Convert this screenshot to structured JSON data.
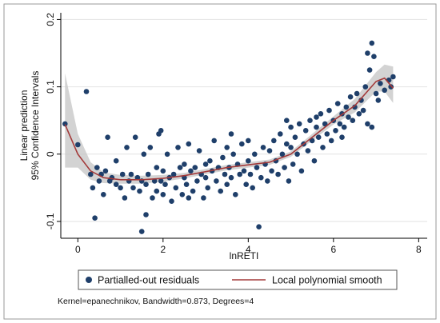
{
  "chart_data": {
    "type": "scatter",
    "xlabel": "lnRETI",
    "ylabel_lines": [
      "Linear prediction",
      "95% Confidence Intervals"
    ],
    "xlim": [
      -0.4,
      8.2
    ],
    "ylim": [
      -0.125,
      0.21
    ],
    "x_ticks": [
      0,
      2,
      4,
      6,
      8
    ],
    "y_ticks": [
      -0.1,
      0,
      0.1,
      0.2
    ],
    "x_tick_labels": [
      "0",
      "2",
      "4",
      "6",
      "8"
    ],
    "y_tick_labels": [
      "-0.1",
      "0",
      "0.1",
      "0.2"
    ],
    "grid": "horizontal",
    "legend_position": "bottom",
    "colors": {
      "points": "#1f3f6a",
      "smooth": "#a33a3a",
      "ci_band": "#c4c4c4"
    },
    "series": [
      {
        "name": "Partialled-out residuals",
        "kind": "points",
        "points": [
          [
            -0.3,
            0.045
          ],
          [
            0.2,
            0.093
          ],
          [
            0.0,
            0.014
          ],
          [
            0.3,
            -0.03
          ],
          [
            0.35,
            -0.05
          ],
          [
            0.4,
            -0.095
          ],
          [
            0.45,
            -0.02
          ],
          [
            0.5,
            -0.04
          ],
          [
            0.55,
            -0.03
          ],
          [
            0.6,
            -0.06
          ],
          [
            0.65,
            -0.025
          ],
          [
            0.7,
            0.025
          ],
          [
            0.75,
            -0.04
          ],
          [
            0.8,
            -0.035
          ],
          [
            0.9,
            -0.045
          ],
          [
            1.0,
            -0.05
          ],
          [
            1.05,
            -0.03
          ],
          [
            1.1,
            -0.065
          ],
          [
            1.15,
            0.01
          ],
          [
            1.2,
            -0.04
          ],
          [
            1.25,
            -0.03
          ],
          [
            1.3,
            -0.05
          ],
          [
            1.35,
            0.025
          ],
          [
            1.4,
            -0.035
          ],
          [
            1.45,
            -0.055
          ],
          [
            1.5,
            -0.115
          ],
          [
            1.5,
            -0.04
          ],
          [
            1.55,
            0.0
          ],
          [
            1.6,
            -0.045
          ],
          [
            1.6,
            -0.09
          ],
          [
            1.65,
            -0.03
          ],
          [
            1.7,
            0.01
          ],
          [
            1.75,
            -0.065
          ],
          [
            1.8,
            -0.04
          ],
          [
            1.85,
            -0.02
          ],
          [
            1.85,
            -0.055
          ],
          [
            1.9,
            0.03
          ],
          [
            1.95,
            -0.04
          ],
          [
            2.0,
            -0.06
          ],
          [
            2.0,
            -0.025
          ],
          [
            2.05,
            -0.045
          ],
          [
            2.1,
            0.0
          ],
          [
            2.15,
            -0.035
          ],
          [
            2.2,
            -0.07
          ],
          [
            2.25,
            -0.03
          ],
          [
            2.3,
            -0.05
          ],
          [
            2.35,
            0.01
          ],
          [
            2.4,
            -0.02
          ],
          [
            2.45,
            -0.06
          ],
          [
            2.5,
            -0.035
          ],
          [
            2.5,
            -0.015
          ],
          [
            2.55,
            -0.045
          ],
          [
            2.6,
            0.015
          ],
          [
            2.65,
            -0.025
          ],
          [
            2.7,
            -0.055
          ],
          [
            2.75,
            -0.02
          ],
          [
            2.8,
            -0.04
          ],
          [
            2.85,
            0.005
          ],
          [
            2.9,
            -0.03
          ],
          [
            2.95,
            -0.065
          ],
          [
            3.0,
            -0.015
          ],
          [
            3.0,
            -0.035
          ],
          [
            3.05,
            -0.05
          ],
          [
            3.1,
            -0.01
          ],
          [
            3.15,
            -0.025
          ],
          [
            3.2,
            0.02
          ],
          [
            3.25,
            -0.04
          ],
          [
            3.3,
            -0.02
          ],
          [
            3.35,
            -0.055
          ],
          [
            3.4,
            -0.005
          ],
          [
            3.45,
            -0.03
          ],
          [
            3.5,
            -0.045
          ],
          [
            3.5,
            0.01
          ],
          [
            3.55,
            -0.02
          ],
          [
            3.6,
            -0.035
          ],
          [
            3.65,
            0.0
          ],
          [
            3.7,
            -0.06
          ],
          [
            3.75,
            -0.015
          ],
          [
            3.8,
            -0.03
          ],
          [
            3.85,
            0.015
          ],
          [
            3.9,
            -0.025
          ],
          [
            3.95,
            -0.045
          ],
          [
            4.0,
            -0.01
          ],
          [
            4.0,
            0.02
          ],
          [
            4.05,
            -0.03
          ],
          [
            4.1,
            -0.05
          ],
          [
            4.15,
            0.0
          ],
          [
            4.2,
            -0.02
          ],
          [
            4.25,
            -0.108
          ],
          [
            4.3,
            -0.035
          ],
          [
            4.35,
            0.01
          ],
          [
            4.4,
            -0.015
          ],
          [
            4.45,
            -0.04
          ],
          [
            4.5,
            0.005
          ],
          [
            4.55,
            -0.025
          ],
          [
            4.6,
            0.02
          ],
          [
            4.65,
            -0.01
          ],
          [
            4.7,
            -0.03
          ],
          [
            4.75,
            0.03
          ],
          [
            4.8,
            0.0
          ],
          [
            4.85,
            -0.02
          ],
          [
            4.9,
            0.015
          ],
          [
            4.95,
            -0.04
          ],
          [
            5.0,
            0.01
          ],
          [
            5.0,
            0.04
          ],
          [
            5.05,
            -0.015
          ],
          [
            5.1,
            0.025
          ],
          [
            5.15,
            0.0
          ],
          [
            5.2,
            0.045
          ],
          [
            5.25,
            -0.025
          ],
          [
            5.3,
            0.015
          ],
          [
            5.35,
            0.035
          ],
          [
            5.4,
            0.005
          ],
          [
            5.45,
            0.05
          ],
          [
            5.5,
            0.02
          ],
          [
            5.55,
            -0.01
          ],
          [
            5.6,
            0.04
          ],
          [
            5.65,
            0.025
          ],
          [
            5.7,
            0.06
          ],
          [
            5.75,
            0.01
          ],
          [
            5.8,
            0.045
          ],
          [
            5.85,
            0.03
          ],
          [
            5.9,
            0.065
          ],
          [
            5.95,
            0.02
          ],
          [
            6.0,
            0.05
          ],
          [
            6.05,
            0.035
          ],
          [
            6.1,
            0.075
          ],
          [
            6.15,
            0.045
          ],
          [
            6.2,
            0.06
          ],
          [
            6.25,
            0.04
          ],
          [
            6.3,
            0.07
          ],
          [
            6.35,
            0.055
          ],
          [
            6.4,
            0.085
          ],
          [
            6.45,
            0.05
          ],
          [
            6.5,
            0.07
          ],
          [
            6.55,
            0.09
          ],
          [
            6.6,
            0.06
          ],
          [
            6.65,
            0.08
          ],
          [
            6.7,
            0.065
          ],
          [
            6.75,
            0.1
          ],
          [
            6.8,
            0.045
          ],
          [
            6.8,
            0.15
          ],
          [
            6.85,
            0.125
          ],
          [
            6.9,
            0.165
          ],
          [
            6.95,
            0.145
          ],
          [
            7.0,
            0.09
          ],
          [
            7.05,
            0.08
          ],
          [
            7.1,
            0.105
          ],
          [
            7.2,
            0.095
          ],
          [
            7.3,
            0.11
          ],
          [
            7.35,
            0.1
          ],
          [
            7.4,
            0.115
          ],
          [
            6.9,
            0.04
          ],
          [
            6.2,
            0.025
          ],
          [
            5.6,
            0.055
          ],
          [
            4.9,
            0.05
          ],
          [
            3.6,
            0.03
          ],
          [
            2.6,
            -0.065
          ],
          [
            1.95,
            0.035
          ],
          [
            0.9,
            -0.01
          ]
        ]
      },
      {
        "name": "Local polynomial smooth",
        "kind": "line",
        "x": [
          -0.3,
          0.0,
          0.3,
          0.6,
          1.0,
          1.5,
          2.0,
          2.5,
          3.0,
          3.5,
          4.0,
          4.5,
          5.0,
          5.5,
          6.0,
          6.5,
          7.0,
          7.2,
          7.4
        ],
        "y": [
          0.044,
          0.0,
          -0.025,
          -0.035,
          -0.038,
          -0.038,
          -0.036,
          -0.032,
          -0.026,
          -0.02,
          -0.016,
          -0.012,
          0.0,
          0.025,
          0.05,
          0.072,
          0.108,
          0.113,
          0.098
        ]
      },
      {
        "name": "95% CI",
        "kind": "band",
        "x": [
          -0.3,
          0.0,
          0.3,
          0.6,
          1.0,
          1.5,
          2.0,
          2.5,
          3.0,
          3.5,
          4.0,
          4.5,
          5.0,
          5.5,
          6.0,
          6.5,
          7.0,
          7.2,
          7.4
        ],
        "lower": [
          -0.02,
          -0.02,
          -0.038,
          -0.043,
          -0.044,
          -0.044,
          -0.041,
          -0.036,
          -0.03,
          -0.024,
          -0.02,
          -0.016,
          -0.004,
          0.02,
          0.044,
          0.062,
          0.093,
          0.093,
          0.076
        ],
        "upper": [
          0.12,
          0.03,
          -0.012,
          -0.027,
          -0.031,
          -0.032,
          -0.031,
          -0.028,
          -0.022,
          -0.016,
          -0.012,
          -0.008,
          0.004,
          0.03,
          0.056,
          0.082,
          0.122,
          0.133,
          0.13
        ]
      }
    ]
  },
  "legend": {
    "points_label": "Partialled-out residuals",
    "line_label": "Local polynomial smooth"
  },
  "note": "Kernel=epanechnikov, Bandwidth=0.873, Degrees=4"
}
